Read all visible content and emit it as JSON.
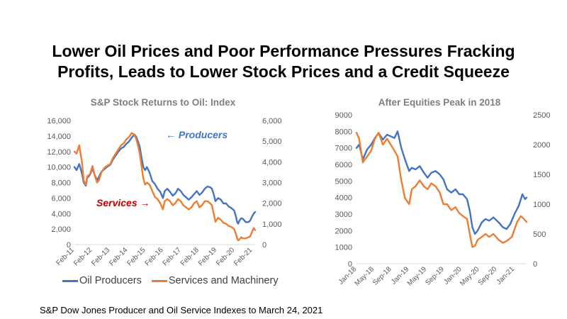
{
  "slide": {
    "title_line1": "Lower Oil Prices and Poor Performance Pressures Fracking",
    "title_line2": "Profits, Leads to Lower Stock Prices and a Credit Squeeze",
    "source": "S&P Dow Jones Producer and Oil Service Indexes to March 24, 2021"
  },
  "legend": {
    "items": [
      {
        "label": "Oil Producers",
        "color": "#4472c4"
      },
      {
        "label": "Services and Machinery",
        "color": "#ed7d31"
      }
    ]
  },
  "annotations": {
    "producers": "← Producers",
    "services": "Services →",
    "producers_color": "#4472c4",
    "services_color": "#c00000"
  },
  "chart_data": [
    {
      "type": "line",
      "title": "S&P Stock Returns to Oil: Index",
      "x_tick_labels": [
        "Feb-11",
        "Feb-12",
        "Feb-13",
        "Feb-14",
        "Feb-15",
        "Feb-16",
        "Feb-17",
        "Feb-18",
        "Feb-19",
        "Feb-20",
        "Feb-21"
      ],
      "y_left_ticks": [
        "0",
        "2,000",
        "4,000",
        "6,000",
        "8,000",
        "10,000",
        "12,000",
        "14,000",
        "16,000"
      ],
      "y_right_ticks": [
        "0",
        "1,000",
        "2,000",
        "3,000",
        "4,000",
        "5,000",
        "6,000"
      ],
      "ylim_left": [
        0,
        16000
      ],
      "ylim_right": [
        0,
        6000
      ],
      "xlim": [
        2011.08,
        2021.23
      ],
      "series": [
        {
          "name": "Oil Producers",
          "axis": "left",
          "color": "#4472c4",
          "x": [
            2011.08,
            2011.2,
            2011.35,
            2011.5,
            2011.6,
            2011.72,
            2011.8,
            2011.95,
            2012.1,
            2012.2,
            2012.35,
            2012.45,
            2012.6,
            2012.75,
            2012.9,
            2013.1,
            2013.25,
            2013.4,
            2013.55,
            2013.7,
            2013.85,
            2014.0,
            2014.15,
            2014.3,
            2014.45,
            2014.55,
            2014.65,
            2014.75,
            2014.85,
            2014.95,
            2015.05,
            2015.15,
            2015.3,
            2015.45,
            2015.6,
            2015.75,
            2015.9,
            2016.05,
            2016.15,
            2016.3,
            2016.45,
            2016.6,
            2016.75,
            2016.9,
            2017.05,
            2017.2,
            2017.35,
            2017.5,
            2017.65,
            2017.8,
            2017.95,
            2018.1,
            2018.25,
            2018.4,
            2018.55,
            2018.7,
            2018.8,
            2018.9,
            2019.0,
            2019.15,
            2019.3,
            2019.45,
            2019.6,
            2019.75,
            2019.9,
            2020.05,
            2020.15,
            2020.22,
            2020.28,
            2020.35,
            2020.45,
            2020.55,
            2020.7,
            2020.85,
            2020.95,
            2021.05,
            2021.15,
            2021.23
          ],
          "y": [
            10000,
            9600,
            10400,
            9200,
            8000,
            7600,
            8600,
            9000,
            9800,
            9100,
            8300,
            8700,
            9400,
            9700,
            10000,
            10300,
            11000,
            11500,
            12000,
            12400,
            12600,
            13000,
            13300,
            13800,
            14200,
            13900,
            13300,
            12600,
            11200,
            10000,
            9600,
            10000,
            9300,
            8200,
            7800,
            7200,
            6800,
            6000,
            6900,
            7200,
            6800,
            6300,
            6600,
            7200,
            6900,
            6400,
            6100,
            5800,
            6100,
            6500,
            6900,
            6400,
            6700,
            7200,
            7500,
            7400,
            7200,
            6500,
            5600,
            6000,
            5800,
            5300,
            5300,
            4900,
            4700,
            4400,
            3600,
            2900,
            2700,
            3100,
            3400,
            3300,
            2900,
            2900,
            3100,
            3600,
            4000,
            4200
          ]
        },
        {
          "name": "Services and Machinery",
          "axis": "right",
          "color": "#ed7d31",
          "x": [
            2011.08,
            2011.2,
            2011.35,
            2011.5,
            2011.6,
            2011.72,
            2011.8,
            2011.95,
            2012.1,
            2012.2,
            2012.35,
            2012.45,
            2012.6,
            2012.75,
            2012.9,
            2013.1,
            2013.25,
            2013.4,
            2013.55,
            2013.7,
            2013.85,
            2014.0,
            2014.15,
            2014.3,
            2014.45,
            2014.55,
            2014.65,
            2014.75,
            2014.85,
            2014.95,
            2015.05,
            2015.15,
            2015.3,
            2015.45,
            2015.6,
            2015.75,
            2015.9,
            2016.05,
            2016.15,
            2016.3,
            2016.45,
            2016.6,
            2016.75,
            2016.9,
            2017.05,
            2017.2,
            2017.35,
            2017.5,
            2017.65,
            2017.8,
            2017.95,
            2018.1,
            2018.25,
            2018.4,
            2018.55,
            2018.7,
            2018.8,
            2018.9,
            2019.0,
            2019.15,
            2019.3,
            2019.45,
            2019.6,
            2019.75,
            2019.9,
            2020.05,
            2020.15,
            2020.22,
            2020.28,
            2020.35,
            2020.45,
            2020.55,
            2020.7,
            2020.85,
            2020.95,
            2021.05,
            2021.15,
            2021.23
          ],
          "y": [
            4500,
            4400,
            4800,
            4000,
            3100,
            2900,
            3300,
            3400,
            3800,
            3400,
            3000,
            3100,
            3500,
            3700,
            3800,
            3900,
            4200,
            4400,
            4600,
            4800,
            4900,
            5100,
            5200,
            5400,
            5300,
            5100,
            4800,
            4400,
            3800,
            3200,
            2900,
            3000,
            2900,
            2600,
            2300,
            2200,
            2000,
            1700,
            2100,
            2200,
            2100,
            1900,
            2000,
            2200,
            2100,
            1900,
            1800,
            1700,
            1800,
            2000,
            2100,
            1800,
            1900,
            2100,
            2100,
            2000,
            1900,
            1500,
            1100,
            1300,
            1200,
            1050,
            1000,
            900,
            850,
            750,
            500,
            300,
            200,
            250,
            350,
            300,
            300,
            350,
            400,
            600,
            800,
            700
          ]
        }
      ]
    },
    {
      "type": "line",
      "title": "After Equities Peak in 2018",
      "x_tick_labels": [
        "Jan-18",
        "May-18",
        "Sep-18",
        "Jan-19",
        "May-19",
        "Sep-19",
        "Jan-20",
        "May-20",
        "Sep-20",
        "Jan-21"
      ],
      "y_left_ticks": [
        "0",
        "1000",
        "2000",
        "3000",
        "4000",
        "5000",
        "6000",
        "7000",
        "8000",
        "9000"
      ],
      "y_right_ticks": [
        "0",
        "500",
        "1000",
        "1500",
        "2000",
        "2500"
      ],
      "ylim_left": [
        0,
        9000
      ],
      "ylim_right": [
        0,
        2500
      ],
      "xlim": [
        2018.0,
        2021.23
      ],
      "series": [
        {
          "name": "Oil Producers",
          "axis": "left",
          "color": "#4472c4",
          "x": [
            2018.0,
            2018.05,
            2018.12,
            2018.2,
            2018.28,
            2018.35,
            2018.42,
            2018.5,
            2018.58,
            2018.65,
            2018.72,
            2018.78,
            2018.85,
            2018.92,
            2019.0,
            2019.05,
            2019.12,
            2019.2,
            2019.28,
            2019.35,
            2019.42,
            2019.5,
            2019.58,
            2019.65,
            2019.72,
            2019.8,
            2019.88,
            2019.95,
            2020.02,
            2020.1,
            2020.15,
            2020.2,
            2020.25,
            2020.3,
            2020.38,
            2020.45,
            2020.52,
            2020.6,
            2020.7,
            2020.78,
            2020.85,
            2020.92,
            2021.0,
            2021.08,
            2021.15,
            2021.2,
            2021.23
          ],
          "y": [
            7000,
            7200,
            6300,
            6900,
            7200,
            7600,
            7900,
            7500,
            7800,
            7700,
            7600,
            8000,
            7000,
            6300,
            5600,
            5800,
            5700,
            5900,
            5500,
            5200,
            5500,
            5600,
            5400,
            5100,
            4500,
            4300,
            4500,
            4200,
            4200,
            3900,
            3200,
            2200,
            1800,
            2000,
            2500,
            2700,
            2600,
            2800,
            2500,
            2200,
            2100,
            2400,
            3000,
            3500,
            4200,
            3900,
            4000
          ]
        },
        {
          "name": "Services and Machinery",
          "axis": "right",
          "color": "#ed7d31",
          "x": [
            2018.0,
            2018.05,
            2018.12,
            2018.2,
            2018.28,
            2018.35,
            2018.42,
            2018.5,
            2018.58,
            2018.65,
            2018.72,
            2018.78,
            2018.85,
            2018.92,
            2019.0,
            2019.05,
            2019.12,
            2019.2,
            2019.28,
            2019.35,
            2019.42,
            2019.5,
            2019.58,
            2019.65,
            2019.72,
            2019.8,
            2019.88,
            2019.95,
            2020.02,
            2020.1,
            2020.15,
            2020.2,
            2020.25,
            2020.3,
            2020.38,
            2020.45,
            2020.52,
            2020.6,
            2020.7,
            2020.78,
            2020.85,
            2020.95,
            2021.05,
            2021.12,
            2021.18,
            2021.23
          ],
          "y": [
            2200,
            2100,
            1700,
            1800,
            1900,
            2100,
            2200,
            2000,
            2100,
            2000,
            1900,
            1800,
            1400,
            1100,
            1000,
            1250,
            1300,
            1400,
            1300,
            1250,
            1350,
            1300,
            1200,
            1000,
            1000,
            900,
            950,
            850,
            800,
            750,
            500,
            280,
            300,
            400,
            450,
            500,
            450,
            500,
            400,
            350,
            380,
            450,
            700,
            800,
            750,
            700
          ]
        }
      ]
    }
  ]
}
